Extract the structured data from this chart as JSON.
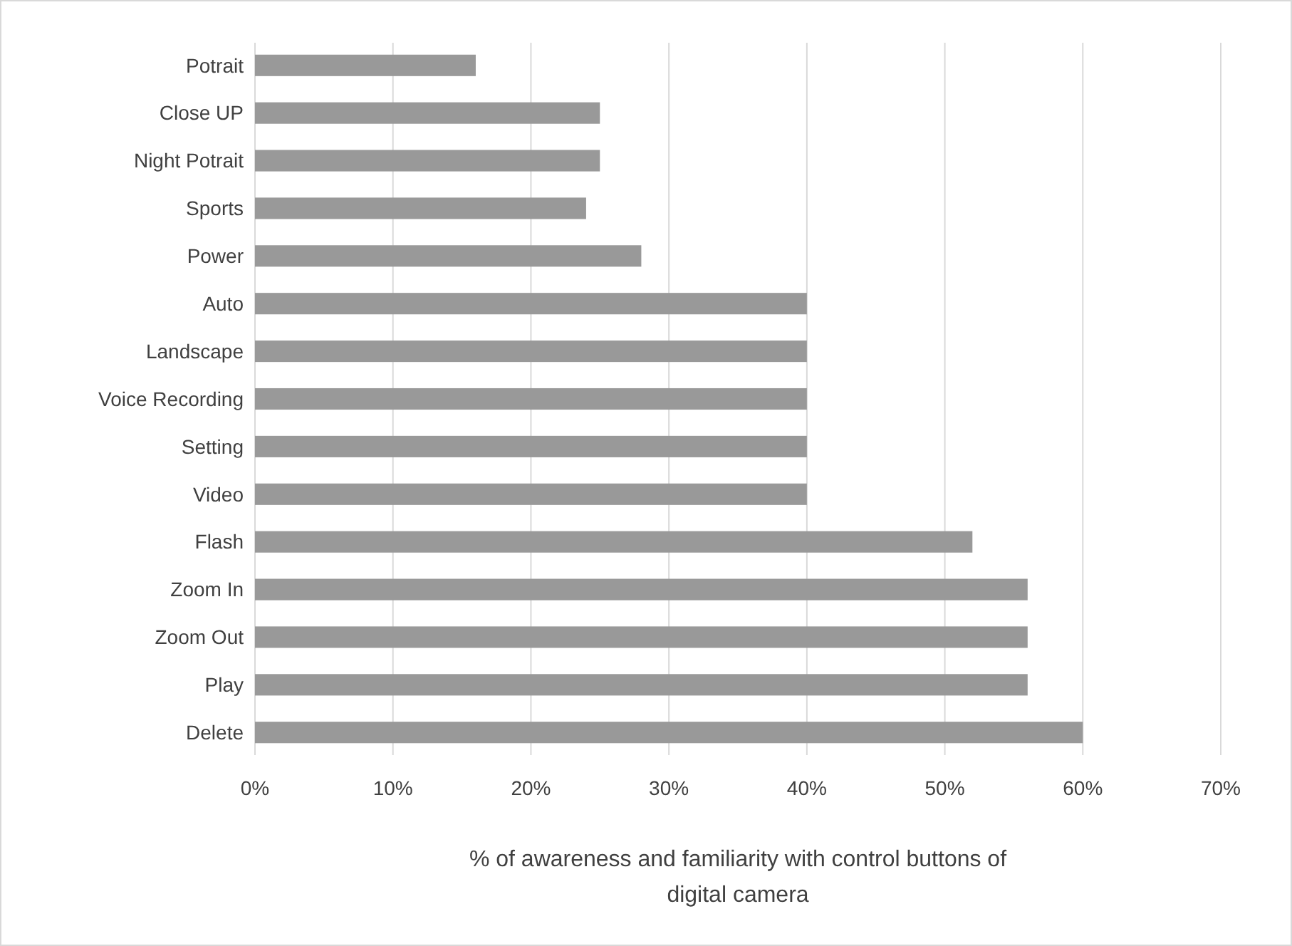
{
  "chart_data": {
    "type": "bar",
    "orientation": "horizontal",
    "categories": [
      "Potrait",
      "Close UP",
      "Night Potrait",
      "Sports",
      "Power",
      "Auto",
      "Landscape",
      "Voice Recording",
      "Setting",
      "Video",
      "Flash",
      "Zoom In",
      "Zoom Out",
      "Play",
      "Delete"
    ],
    "values": [
      16,
      25,
      25,
      24,
      28,
      40,
      40,
      40,
      40,
      40,
      52,
      56,
      56,
      56,
      60
    ],
    "color": "#999999",
    "xlim": [
      0,
      70
    ],
    "xticks": [
      {
        "value": 0,
        "label": "0%"
      },
      {
        "value": 10,
        "label": "10%"
      },
      {
        "value": 20,
        "label": "20%"
      },
      {
        "value": 30,
        "label": "30%"
      },
      {
        "value": 40,
        "label": "40%"
      },
      {
        "value": 50,
        "label": "50%"
      },
      {
        "value": 60,
        "label": "60%"
      },
      {
        "value": 70,
        "label": "70%"
      }
    ],
    "xlabel": "% of awareness and familiarity with control buttons of digital camera",
    "grid": "x"
  }
}
